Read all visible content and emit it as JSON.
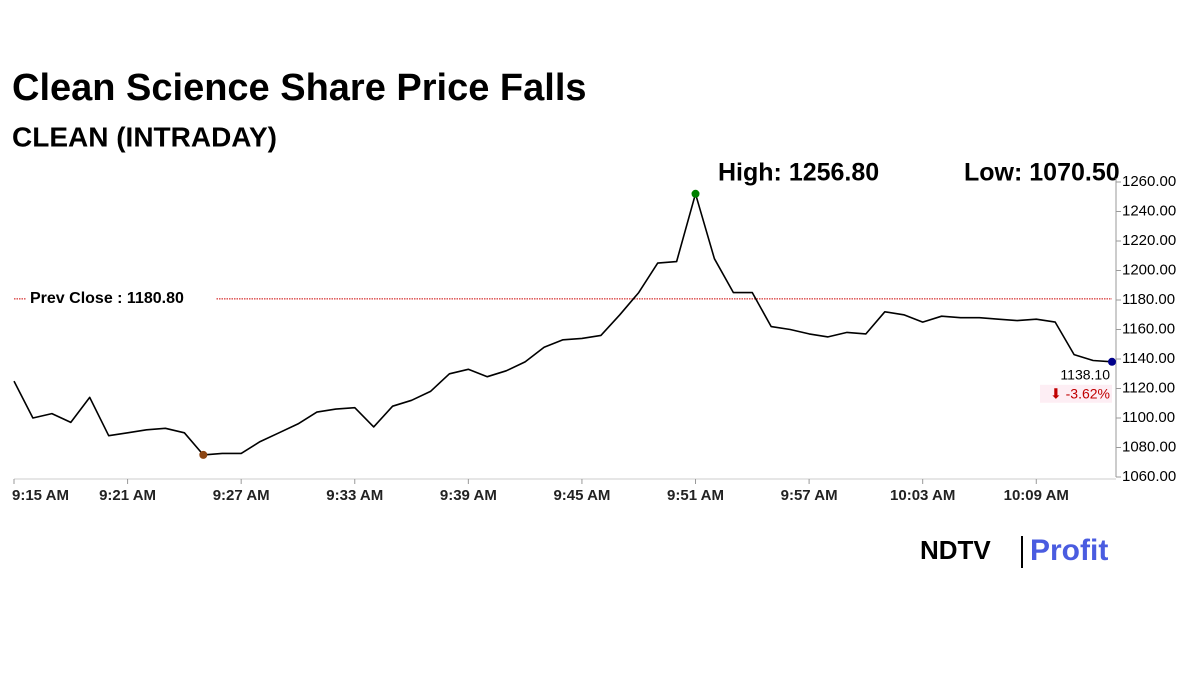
{
  "chart_data": {
    "type": "line",
    "title": "Clean Science Share Price Falls",
    "subtitle": "CLEAN (INTRADAY)",
    "high_label": "High: 1256.80",
    "low_label": "Low: 1070.50",
    "prev_close": {
      "value": 1180.8,
      "label": "Prev Close : 1180.80"
    },
    "last_label": "1138.10",
    "change_label": "⬇ -3.62%",
    "logo": [
      "NDTV",
      "Profit"
    ],
    "categories": [
      "9:15 AM",
      null,
      null,
      null,
      null,
      null,
      "9:21 AM",
      null,
      null,
      null,
      null,
      null,
      "9:27 AM",
      null,
      null,
      null,
      null,
      null,
      "9:33 AM",
      null,
      null,
      null,
      null,
      null,
      "9:39 AM",
      null,
      null,
      null,
      null,
      null,
      "9:45 AM",
      null,
      null,
      null,
      null,
      null,
      "9:51 AM",
      null,
      null,
      null,
      null,
      null,
      "9:57 AM",
      null,
      null,
      null,
      null,
      null,
      "10:03 AM",
      null,
      null,
      null,
      null,
      null,
      "10:09 AM",
      null,
      null,
      null,
      null
    ],
    "series": [
      {
        "name": "CLEAN",
        "color": "#000000",
        "values": [
          1125,
          1100,
          1103,
          1097,
          1114,
          1088,
          1090,
          1092,
          1093,
          1090,
          1075,
          1076,
          1076,
          1084,
          1090,
          1096,
          1104,
          1106,
          1107,
          1094,
          1108,
          1112,
          1118,
          1130,
          1133,
          1128,
          1132,
          1138,
          1148,
          1153,
          1154,
          1156,
          1170,
          1185,
          1205,
          1206,
          1252,
          1208,
          1185,
          1185,
          1162,
          1160,
          1157,
          1155,
          1158,
          1157,
          1172,
          1170,
          1165,
          1169,
          1168,
          1168,
          1167,
          1166,
          1167,
          1165,
          1143,
          1139,
          1138.1
        ]
      }
    ],
    "high_index": 36,
    "low_index": 10,
    "high_color": "#008000",
    "low_color": "#8b4513",
    "last_color": "#00008b",
    "prev_close_color": "#cc0000",
    "ylim": [
      1060,
      1260
    ],
    "yticks": [
      {
        "value": 1060,
        "label": "1060.00"
      },
      {
        "value": 1080,
        "label": "1080.00"
      },
      {
        "value": 1100,
        "label": "1100.00"
      },
      {
        "value": 1120,
        "label": "1120.00"
      },
      {
        "value": 1140,
        "label": "1140.00"
      },
      {
        "value": 1160,
        "label": "1160.00"
      },
      {
        "value": 1180,
        "label": "1180.00"
      },
      {
        "value": 1200,
        "label": "1200.00"
      },
      {
        "value": 1220,
        "label": "1220.00"
      },
      {
        "value": 1240,
        "label": "1240.00"
      },
      {
        "value": 1260,
        "label": "1260.00"
      }
    ]
  }
}
